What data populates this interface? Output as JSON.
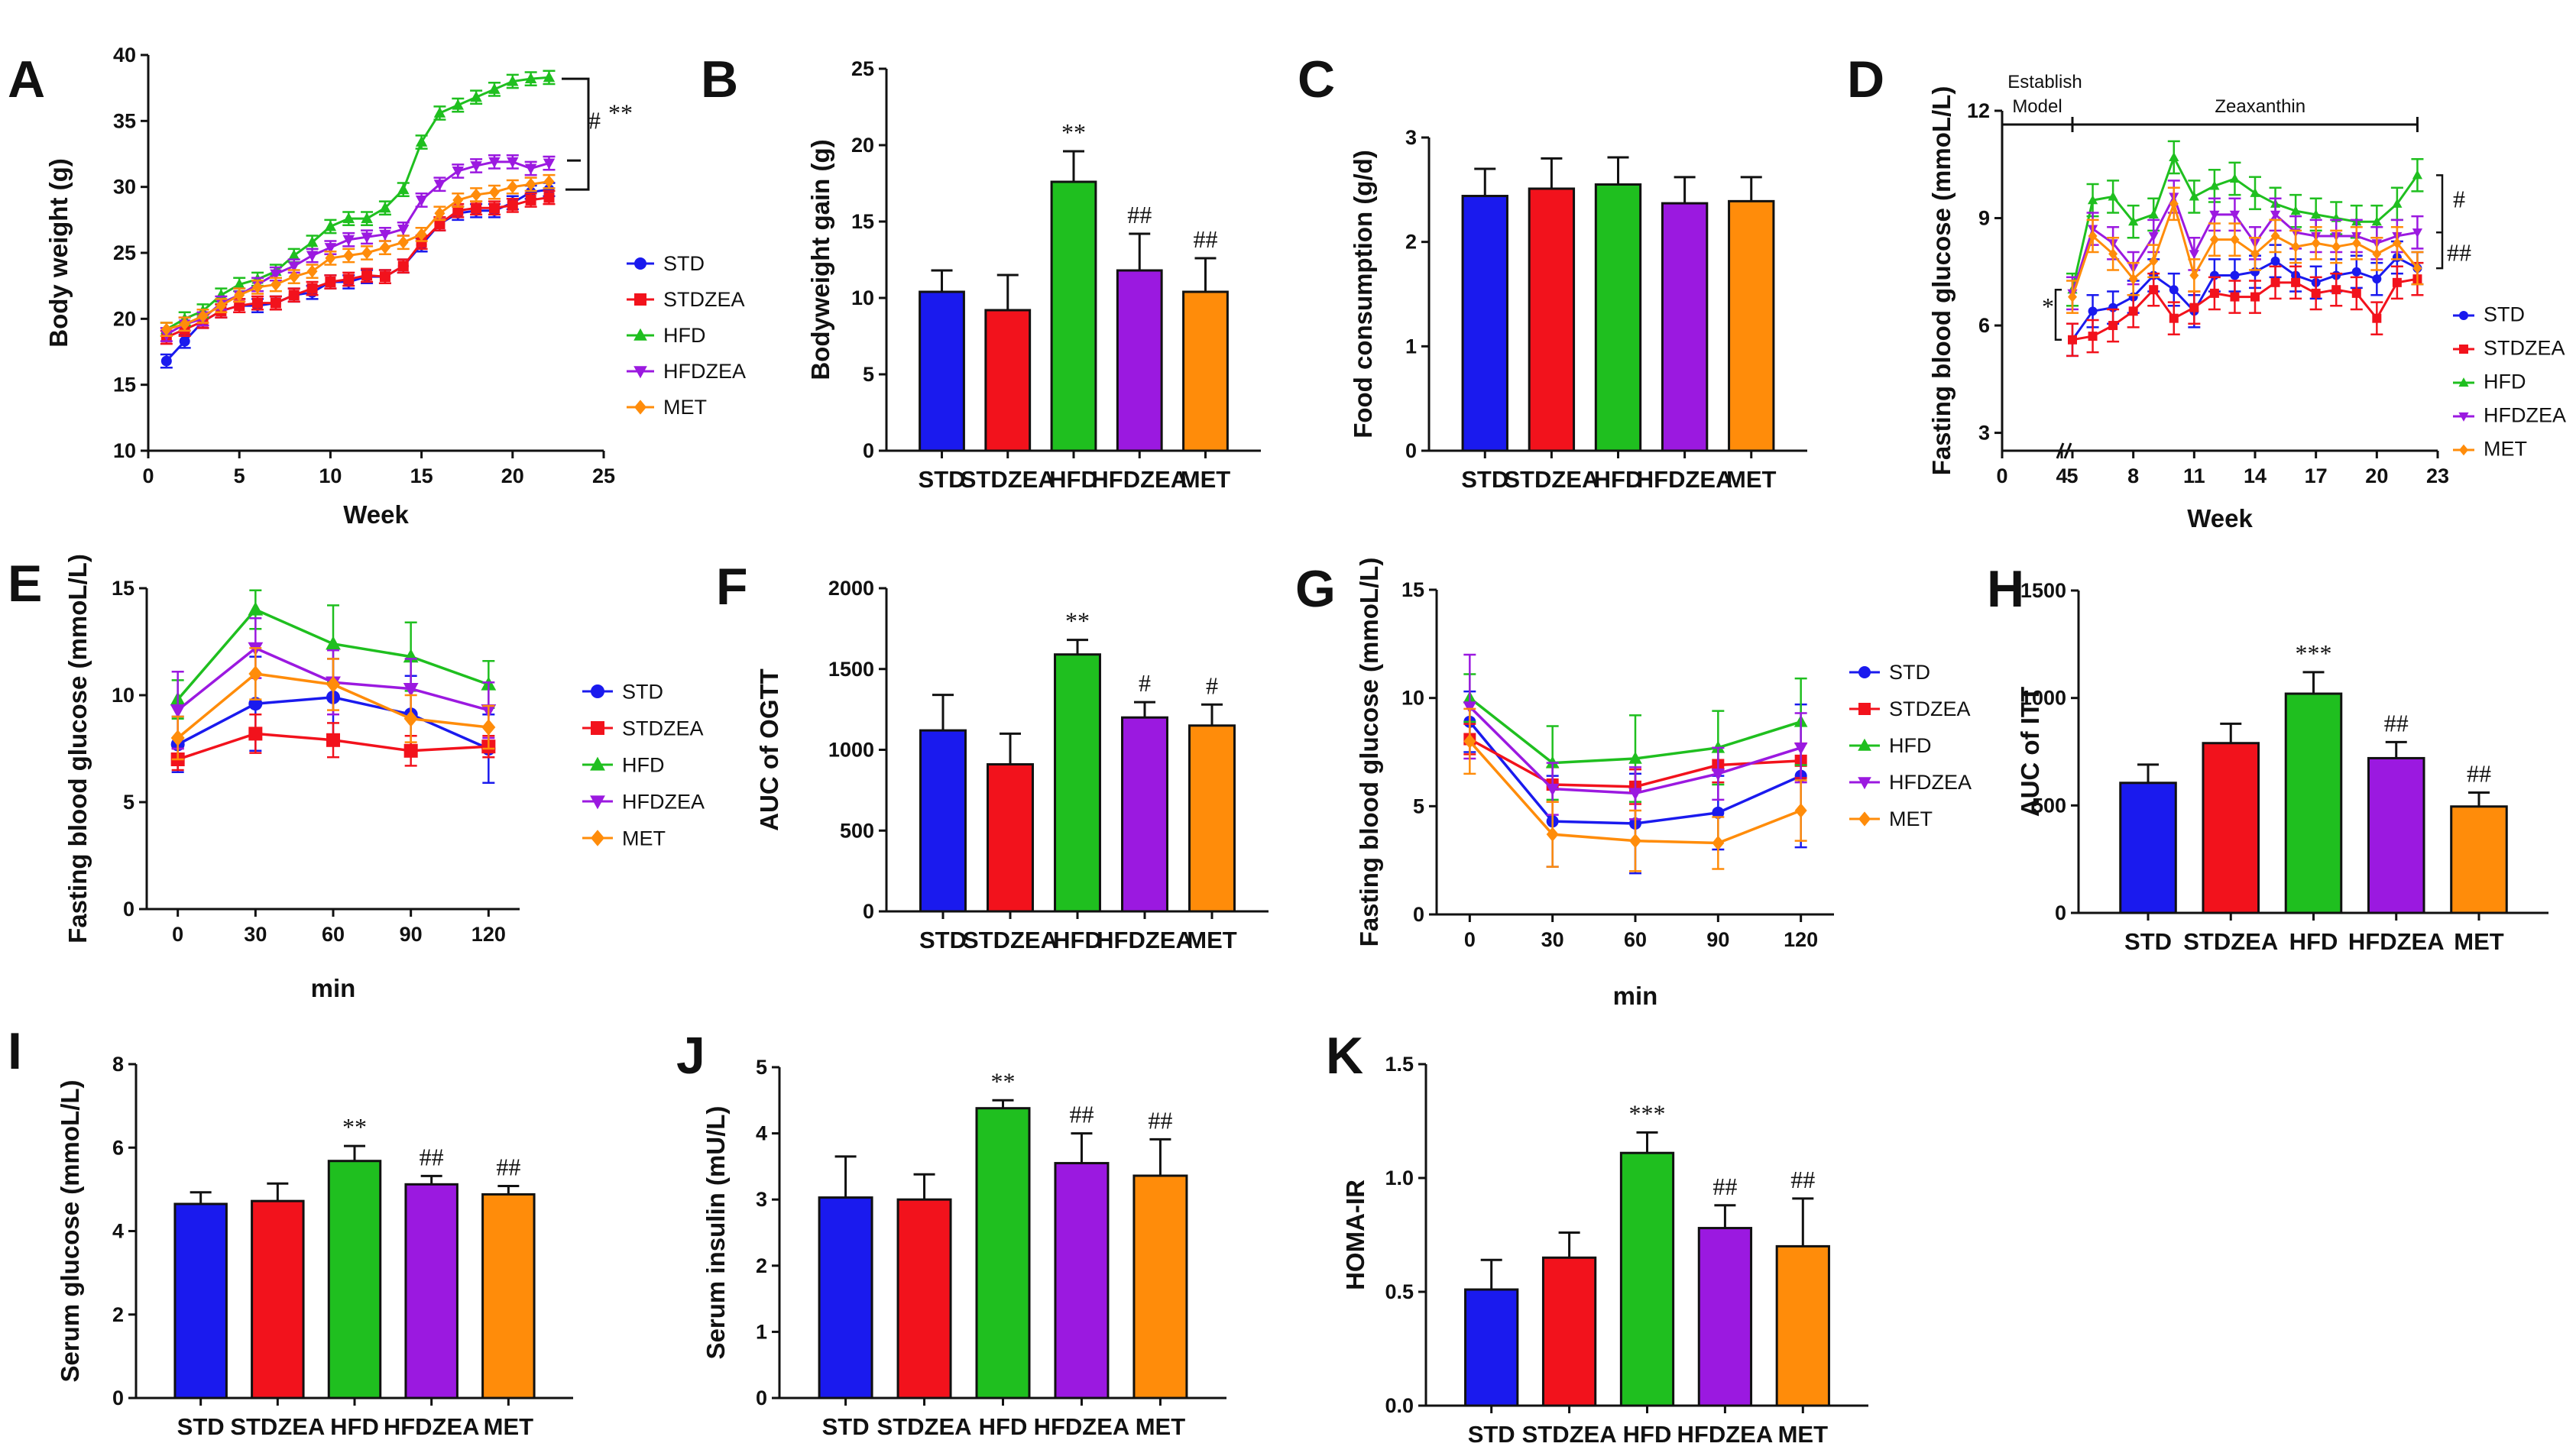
{
  "colors": {
    "STD": "#1a1aee",
    "STDZEA": "#f2121c",
    "HFD": "#1fbf1f",
    "HFDZEA": "#9b19e0",
    "MET": "#ff8c0a"
  },
  "chart_data": [
    {
      "id": "A",
      "panel": "A",
      "type": "line",
      "xlabel": "Week",
      "ylabel": "Body weight (g)",
      "xlim": [
        0,
        25
      ],
      "xticks": [
        0,
        5,
        10,
        15,
        20,
        25
      ],
      "ylim": [
        10,
        40
      ],
      "yticks": [
        10,
        15,
        20,
        25,
        30,
        35,
        40
      ],
      "x": [
        1,
        2,
        3,
        4,
        5,
        6,
        7,
        8,
        9,
        10,
        11,
        12,
        13,
        14,
        15,
        16,
        17,
        18,
        19,
        20,
        21,
        22
      ],
      "series": [
        {
          "name": "STD",
          "values": [
            16.8,
            18.3,
            19.8,
            20.6,
            21.0,
            21.0,
            21.2,
            21.8,
            22.0,
            22.8,
            22.8,
            23.2,
            23.2,
            24.0,
            25.6,
            27.2,
            28.0,
            28.2,
            28.2,
            28.8,
            29.6,
            29.8
          ]
        },
        {
          "name": "STDZEA",
          "values": [
            18.6,
            19.2,
            19.8,
            20.6,
            21.0,
            21.2,
            21.2,
            21.8,
            22.3,
            22.8,
            23.0,
            23.3,
            23.2,
            24.0,
            25.8,
            27.2,
            28.2,
            28.4,
            28.4,
            28.6,
            29.0,
            29.2
          ]
        },
        {
          "name": "HFD",
          "values": [
            19.2,
            20.0,
            20.6,
            21.8,
            22.6,
            23.0,
            23.6,
            24.8,
            25.8,
            27.0,
            27.6,
            27.6,
            28.4,
            29.8,
            33.4,
            35.6,
            36.2,
            36.8,
            37.4,
            38.0,
            38.2,
            38.3
          ]
        },
        {
          "name": "HFDZEA",
          "values": [
            18.8,
            19.6,
            20.0,
            21.2,
            21.8,
            22.6,
            23.4,
            24.0,
            24.8,
            25.4,
            26.0,
            26.2,
            26.4,
            26.8,
            29.0,
            30.2,
            31.2,
            31.6,
            31.9,
            31.9,
            31.4,
            31.8
          ]
        },
        {
          "name": "MET",
          "values": [
            19.2,
            19.6,
            20.2,
            21.0,
            21.8,
            22.4,
            22.6,
            23.2,
            23.6,
            24.6,
            24.8,
            25.0,
            25.4,
            25.8,
            26.4,
            28.0,
            29.0,
            29.4,
            29.6,
            30.0,
            30.2,
            30.4
          ]
        }
      ],
      "annotations": [
        {
          "text": "#"
        },
        {
          "text": "**"
        }
      ]
    },
    {
      "id": "B",
      "panel": "B",
      "type": "bar",
      "ylabel": "Bodyweight gain (g)",
      "ylim": [
        0,
        25
      ],
      "yticks": [
        0,
        5,
        10,
        15,
        20,
        25
      ],
      "categories": [
        "STD",
        "STDZEA",
        "HFD",
        "HFDZEA",
        "MET"
      ],
      "values": [
        10.4,
        9.2,
        17.6,
        11.8,
        10.4
      ],
      "errors": [
        1.4,
        2.3,
        2.0,
        2.4,
        2.2
      ],
      "labels": [
        "",
        "",
        "**",
        "##",
        "##"
      ]
    },
    {
      "id": "C",
      "panel": "C",
      "type": "bar",
      "ylabel": "Food consumption (g/d)",
      "ylim": [
        0,
        3
      ],
      "yticks": [
        0,
        1,
        2,
        3
      ],
      "categories": [
        "STD",
        "STDZEA",
        "HFD",
        "HFDZEA",
        "MET"
      ],
      "values": [
        2.44,
        2.51,
        2.55,
        2.37,
        2.39
      ],
      "errors": [
        0.26,
        0.29,
        0.26,
        0.25,
        0.23
      ],
      "labels": [
        "",
        "",
        "",
        "",
        ""
      ]
    },
    {
      "id": "D",
      "panel": "D",
      "type": "line",
      "xlabel": "Week",
      "ylabel": "Fasting blood glucose (mmoL/L)",
      "xlim": [
        0,
        23
      ],
      "xticks": [
        0,
        4,
        5,
        8,
        11,
        14,
        17,
        20,
        23
      ],
      "ylim": [
        2.5,
        12
      ],
      "yticks": [
        3,
        6,
        9,
        12
      ],
      "x": [
        5,
        6,
        7,
        8,
        9,
        10,
        11,
        12,
        13,
        14,
        15,
        16,
        17,
        18,
        19,
        20,
        21,
        22
      ],
      "series": [
        {
          "name": "STD",
          "values": [
            5.6,
            6.4,
            6.5,
            6.8,
            7.4,
            7.0,
            6.4,
            7.4,
            7.4,
            7.5,
            7.8,
            7.4,
            7.2,
            7.4,
            7.5,
            7.3,
            7.9,
            7.6
          ]
        },
        {
          "name": "STDZEA",
          "values": [
            5.6,
            5.7,
            6.0,
            6.4,
            7.0,
            6.2,
            6.5,
            6.9,
            6.8,
            6.8,
            7.2,
            7.2,
            6.9,
            7.0,
            6.9,
            6.2,
            7.2,
            7.3
          ]
        },
        {
          "name": "HFD",
          "values": [
            7.0,
            9.5,
            9.6,
            8.9,
            9.1,
            10.7,
            9.6,
            9.9,
            10.1,
            9.7,
            9.4,
            9.2,
            9.1,
            9.0,
            8.9,
            8.9,
            9.4,
            10.2
          ]
        },
        {
          "name": "HFDZEA",
          "values": [
            6.9,
            8.7,
            8.3,
            7.6,
            8.5,
            9.6,
            8.0,
            9.1,
            9.1,
            8.3,
            9.1,
            8.6,
            8.5,
            8.5,
            8.5,
            8.3,
            8.5,
            8.6
          ]
        },
        {
          "name": "MET",
          "values": [
            6.8,
            8.5,
            8.0,
            7.3,
            7.8,
            9.4,
            7.4,
            8.4,
            8.4,
            8.0,
            8.5,
            8.2,
            8.3,
            8.2,
            8.3,
            8.0,
            8.3,
            7.6
          ]
        }
      ],
      "annotations": [
        {
          "text": "Establish"
        },
        {
          "text": "Model"
        },
        {
          "text": "Zeaxanthin"
        },
        {
          "text": "#"
        },
        {
          "text": "##"
        },
        {
          "text": "*"
        }
      ]
    },
    {
      "id": "E",
      "panel": "E",
      "type": "line",
      "xlabel": "min",
      "ylabel": "Fasting blood glucose (mmoL/L)",
      "xlim": [
        -12,
        132
      ],
      "xticks": [
        0,
        30,
        60,
        90,
        120
      ],
      "ylim": [
        0,
        15
      ],
      "yticks": [
        0,
        5,
        10,
        15
      ],
      "x": [
        0,
        30,
        60,
        90,
        120
      ],
      "series": [
        {
          "name": "STD",
          "values": [
            7.7,
            9.6,
            9.9,
            9.1,
            7.5
          ],
          "errors": [
            1.3,
            2.2,
            1.8,
            1.8,
            1.6
          ]
        },
        {
          "name": "STDZEA",
          "values": [
            7.0,
            8.2,
            7.9,
            7.4,
            7.6
          ],
          "errors": [
            0.5,
            0.9,
            0.8,
            0.7,
            0.5
          ]
        },
        {
          "name": "HFD",
          "values": [
            9.8,
            14.0,
            12.4,
            11.8,
            10.5
          ],
          "errors": [
            0.9,
            0.9,
            1.8,
            1.6,
            1.1
          ]
        },
        {
          "name": "HFDZEA",
          "values": [
            9.3,
            12.2,
            10.6,
            10.3,
            9.3
          ],
          "errors": [
            1.8,
            1.4,
            1.5,
            1.4,
            1.3
          ]
        },
        {
          "name": "MET",
          "values": [
            8.0,
            11.0,
            10.5,
            8.9,
            8.5
          ],
          "errors": [
            1.0,
            1.2,
            1.2,
            1.1,
            1.0
          ]
        }
      ]
    },
    {
      "id": "F",
      "panel": "F",
      "type": "bar",
      "ylabel": "AUC of OGTT",
      "ylim": [
        0,
        2000
      ],
      "yticks": [
        0,
        500,
        1000,
        1500,
        2000
      ],
      "categories": [
        "STD",
        "STDZEA",
        "HFD",
        "HFDZEA",
        "MET"
      ],
      "values": [
        1120,
        910,
        1590,
        1200,
        1150
      ],
      "errors": [
        220,
        190,
        90,
        95,
        130
      ],
      "labels": [
        "",
        "",
        "**",
        "#",
        "#"
      ]
    },
    {
      "id": "G",
      "panel": "G",
      "type": "line",
      "xlabel": "min",
      "ylabel": "Fasting blood glucose (mmoL/L)",
      "xlim": [
        -12,
        132
      ],
      "xticks": [
        0,
        30,
        60,
        90,
        120
      ],
      "ylim": [
        0,
        15
      ],
      "yticks": [
        0,
        5,
        10,
        15
      ],
      "x": [
        0,
        30,
        60,
        90,
        120
      ],
      "series": [
        {
          "name": "STD",
          "values": [
            8.9,
            4.3,
            4.2,
            4.7,
            6.4
          ],
          "errors": [
            1.4,
            2.1,
            2.3,
            1.7,
            3.3
          ]
        },
        {
          "name": "STDZEA",
          "values": [
            8.1,
            6.0,
            5.9,
            6.9,
            7.1
          ],
          "errors": [
            0.7,
            0.8,
            0.8,
            0.8,
            0.8
          ]
        },
        {
          "name": "HFD",
          "values": [
            10.0,
            7.0,
            7.2,
            7.7,
            8.9
          ],
          "errors": [
            1.1,
            1.7,
            2.0,
            1.7,
            2.0
          ]
        },
        {
          "name": "HFDZEA",
          "values": [
            9.6,
            5.8,
            5.6,
            6.5,
            7.7
          ],
          "errors": [
            2.4,
            1.2,
            1.2,
            1.2,
            1.6
          ]
        },
        {
          "name": "MET",
          "values": [
            8.0,
            3.7,
            3.4,
            3.3,
            4.8
          ],
          "errors": [
            1.5,
            1.5,
            1.4,
            1.2,
            1.4
          ]
        }
      ]
    },
    {
      "id": "H",
      "panel": "H",
      "type": "bar",
      "ylabel": "AUC of ITT",
      "ylim": [
        0,
        1500
      ],
      "yticks": [
        0,
        500,
        1000,
        1500
      ],
      "categories": [
        "STD",
        "STDZEA",
        "HFD",
        "HFDZEA",
        "MET"
      ],
      "values": [
        605,
        790,
        1020,
        720,
        495
      ],
      "errors": [
        85,
        90,
        100,
        75,
        65
      ],
      "labels": [
        "",
        "",
        "***",
        "##",
        "##"
      ]
    },
    {
      "id": "I",
      "panel": "I",
      "type": "bar",
      "ylabel": "Serum  glucose (mmoL/L)",
      "ylim": [
        0,
        8
      ],
      "yticks": [
        0,
        2,
        4,
        6,
        8
      ],
      "categories": [
        "STD",
        "STDZEA",
        "HFD",
        "HFDZEA",
        "MET"
      ],
      "values": [
        4.65,
        4.72,
        5.68,
        5.12,
        4.88
      ],
      "errors": [
        0.28,
        0.42,
        0.36,
        0.2,
        0.2
      ],
      "labels": [
        "",
        "",
        "**",
        "##",
        "##"
      ]
    },
    {
      "id": "J",
      "panel": "J",
      "type": "bar",
      "ylabel": "Serum insulin (mU/L)",
      "ylim": [
        0,
        5
      ],
      "yticks": [
        0,
        1,
        2,
        3,
        4,
        5
      ],
      "categories": [
        "STD",
        "STDZEA",
        "HFD",
        "HFDZEA",
        "MET"
      ],
      "values": [
        3.03,
        3.0,
        4.38,
        3.55,
        3.36
      ],
      "errors": [
        0.62,
        0.38,
        0.12,
        0.45,
        0.55
      ],
      "labels": [
        "",
        "",
        "**",
        "##",
        "##"
      ]
    },
    {
      "id": "K",
      "panel": "K",
      "type": "bar",
      "ylabel": "HOMA-IR",
      "ylim": [
        0,
        1.5
      ],
      "yticks": [
        0.0,
        0.5,
        1.0,
        1.5
      ],
      "categories": [
        "STD",
        "STDZEA",
        "HFD",
        "HFDZEA",
        "MET"
      ],
      "values": [
        0.51,
        0.65,
        1.11,
        0.78,
        0.7
      ],
      "errors": [
        0.13,
        0.11,
        0.09,
        0.1,
        0.21
      ],
      "labels": [
        "",
        "",
        "***",
        "##",
        "##"
      ]
    }
  ]
}
